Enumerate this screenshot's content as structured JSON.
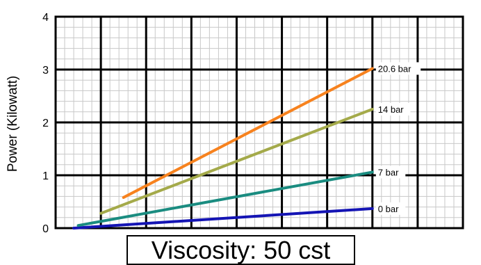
{
  "chart_data": {
    "type": "line",
    "xlabel": "",
    "ylabel": "Power (Kilowatt)",
    "ylim": [
      0,
      4
    ],
    "yticks": [
      "0",
      "1",
      "2",
      "3",
      "4"
    ],
    "xlim": [
      0,
      9
    ],
    "grid": true,
    "caption": "Viscosity: 50 cst",
    "series": [
      {
        "name": "0 bar",
        "color": "#1414b4",
        "x": [
          0.4,
          7.0
        ],
        "y": [
          0.0,
          0.37
        ]
      },
      {
        "name": "7 bar",
        "color": "#1a8c80",
        "x": [
          0.5,
          7.0
        ],
        "y": [
          0.05,
          1.06
        ]
      },
      {
        "name": "14 bar",
        "color": "#a4aa4a",
        "x": [
          1.0,
          7.0
        ],
        "y": [
          0.28,
          2.25
        ]
      },
      {
        "name": "20.6 bar",
        "color": "#f7821e",
        "x": [
          1.5,
          7.0
        ],
        "y": [
          0.58,
          3.02
        ]
      }
    ]
  }
}
